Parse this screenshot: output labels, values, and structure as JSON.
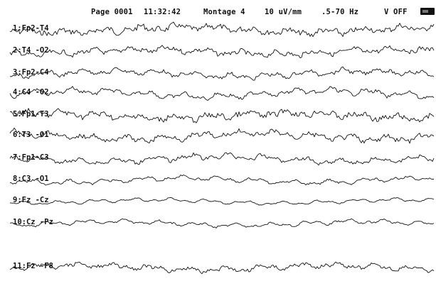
{
  "header": {
    "page": "Page 0001",
    "time": "11:32:42",
    "montage": "Montage  4",
    "gain": "10 uV/mm",
    "filter": ".5-70 Hz",
    "cal": "V OFF"
  },
  "chart_data": {
    "type": "line",
    "title": "",
    "grid": false,
    "series": [
      {
        "label": "1:Fp2-T4",
        "amp": 4.5,
        "noise": 1.0
      },
      {
        "label": "2:T4 -O2",
        "amp": 4.0,
        "noise": 0.9
      },
      {
        "label": "3:Fp2-C4",
        "amp": 4.5,
        "noise": 0.6
      },
      {
        "label": "4:C4 -O2",
        "amp": 5.0,
        "noise": 0.5
      },
      {
        "label": "5:Fp1-T3",
        "amp": 4.5,
        "noise": 1.0
      },
      {
        "label": "6:T3 -O1",
        "amp": 5.0,
        "noise": 0.7
      },
      {
        "label": "7:Fp1-C3",
        "amp": 4.5,
        "noise": 0.6
      },
      {
        "label": "8:C3 -O1",
        "amp": 4.0,
        "noise": 0.4
      },
      {
        "label": "9:Fz -Cz",
        "amp": 3.0,
        "noise": 0.3
      },
      {
        "label": "10:Cz -Pz",
        "amp": 3.5,
        "noise": 0.4
      },
      {
        "label": "11:Fz -F8",
        "amp": 4.0,
        "noise": 0.7
      }
    ]
  }
}
